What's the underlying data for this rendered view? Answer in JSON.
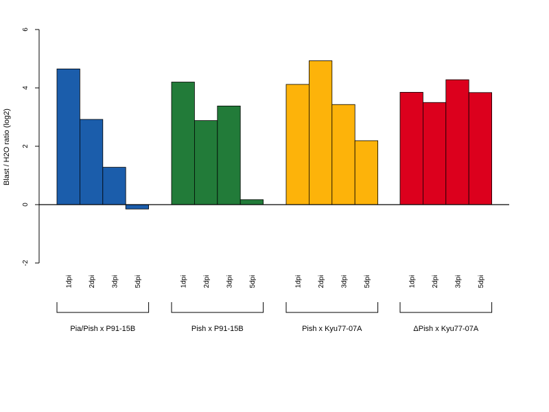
{
  "chart_data": {
    "type": "bar",
    "ylabel": "Blast / H2O ratio (log2)",
    "ylim": [
      -2,
      6
    ],
    "yticks": [
      -2,
      0,
      2,
      4,
      6
    ],
    "grid": false,
    "legend": "none",
    "categories": [
      "1dpi",
      "2dpi",
      "3dpi",
      "5dpi"
    ],
    "groups": [
      {
        "label": "Pia/Pish x P91-15B",
        "color": "#1b5dab",
        "values": [
          4.65,
          2.92,
          1.28,
          -0.15
        ]
      },
      {
        "label": "Pish x P91-15B",
        "color": "#227b39",
        "values": [
          4.2,
          2.88,
          3.38,
          0.17
        ]
      },
      {
        "label": "Pish x Kyu77-07A",
        "color": "#fdb30a",
        "values": [
          4.12,
          4.93,
          3.43,
          2.19
        ]
      },
      {
        "label": "ΔPish x Kyu77-07A",
        "color": "#dc001d",
        "values": [
          3.85,
          3.5,
          4.28,
          3.84
        ]
      }
    ]
  }
}
